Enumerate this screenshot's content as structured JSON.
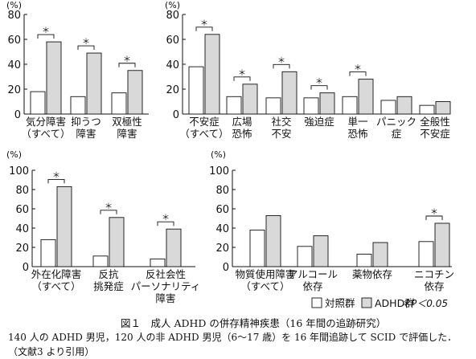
{
  "chart_data": [
    {
      "type": "bar",
      "y_unit": "(%)",
      "ylim": [
        0,
        80
      ],
      "yticks": [
        "0",
        "20",
        "40",
        "60",
        "80"
      ],
      "categories": [
        {
          "label": [
            "気分障害",
            "（すべて）"
          ],
          "control": 18,
          "adhd": 58,
          "significant": true
        },
        {
          "label": [
            "抑うつ",
            "障害"
          ],
          "control": 14,
          "adhd": 49,
          "significant": true
        },
        {
          "label": [
            "双極性",
            "障害"
          ],
          "control": 17,
          "adhd": 35,
          "significant": true
        }
      ]
    },
    {
      "type": "bar",
      "y_unit": "(%)",
      "ylim": [
        0,
        80
      ],
      "yticks": [
        "0",
        "20",
        "40",
        "60",
        "80"
      ],
      "categories": [
        {
          "label": [
            "不安症",
            "（すべて）"
          ],
          "control": 38,
          "adhd": 64,
          "significant": true
        },
        {
          "label": [
            "広場",
            "恐怖"
          ],
          "control": 14,
          "adhd": 24,
          "significant": true
        },
        {
          "label": [
            "社交",
            "不安"
          ],
          "control": 13,
          "adhd": 34,
          "significant": true
        },
        {
          "label": [
            "強迫症"
          ],
          "control": 13,
          "adhd": 17,
          "significant": true
        },
        {
          "label": [
            "単一",
            "恐怖"
          ],
          "control": 14,
          "adhd": 28,
          "significant": true
        },
        {
          "label": [
            "パニック",
            "症"
          ],
          "control": 11,
          "adhd": 14,
          "significant": false
        },
        {
          "label": [
            "全般性",
            "不安症"
          ],
          "control": 7,
          "adhd": 10,
          "significant": false
        }
      ]
    },
    {
      "type": "bar",
      "y_unit": "(%)",
      "ylim": [
        0,
        100
      ],
      "yticks": [
        "0",
        "20",
        "40",
        "60",
        "80",
        "100"
      ],
      "categories": [
        {
          "label": [
            "外在化障害",
            "（すべて）"
          ],
          "control": 28,
          "adhd": 83,
          "significant": true
        },
        {
          "label": [
            "反抗",
            "挑発症"
          ],
          "control": 11,
          "adhd": 51,
          "significant": true
        },
        {
          "label": [
            "反社会性",
            "パーソナリティ",
            "障害"
          ],
          "control": 8,
          "adhd": 39,
          "significant": true
        }
      ]
    },
    {
      "type": "bar",
      "y_unit": "(%)",
      "ylim": [
        0,
        100
      ],
      "yticks": [
        "0",
        "20",
        "40",
        "60",
        "80",
        "100"
      ],
      "categories": [
        {
          "label": [
            "物質使用障害",
            "（すべて）"
          ],
          "control": 38,
          "adhd": 53,
          "significant": false
        },
        {
          "label": [
            "アルコール",
            "依存"
          ],
          "control": 21,
          "adhd": 32,
          "significant": false
        },
        {
          "label": [
            "薬物依存"
          ],
          "control": 13,
          "adhd": 25,
          "significant": false
        },
        {
          "label": [
            "ニコチン",
            "依存"
          ],
          "control": 26,
          "adhd": 45,
          "significant": true
        }
      ]
    }
  ],
  "series": [
    {
      "key": "control",
      "name": "対照群",
      "color": "#ffffff"
    },
    {
      "key": "adhd",
      "name": "ADHD群",
      "color": "#d9d9d9"
    }
  ],
  "significance_marker": "＊",
  "legend_significance": "＊P＜0.05",
  "caption": {
    "title": "図１　成人 ADHD の併存精神疾患（16 年間の追跡研究）",
    "line1": "140 人の ADHD 男児，120 人の非 ADHD 男児（6～17 歳）を 16 年間追跡して SCID で評価した．",
    "line2": "（文献3 より引用）"
  }
}
